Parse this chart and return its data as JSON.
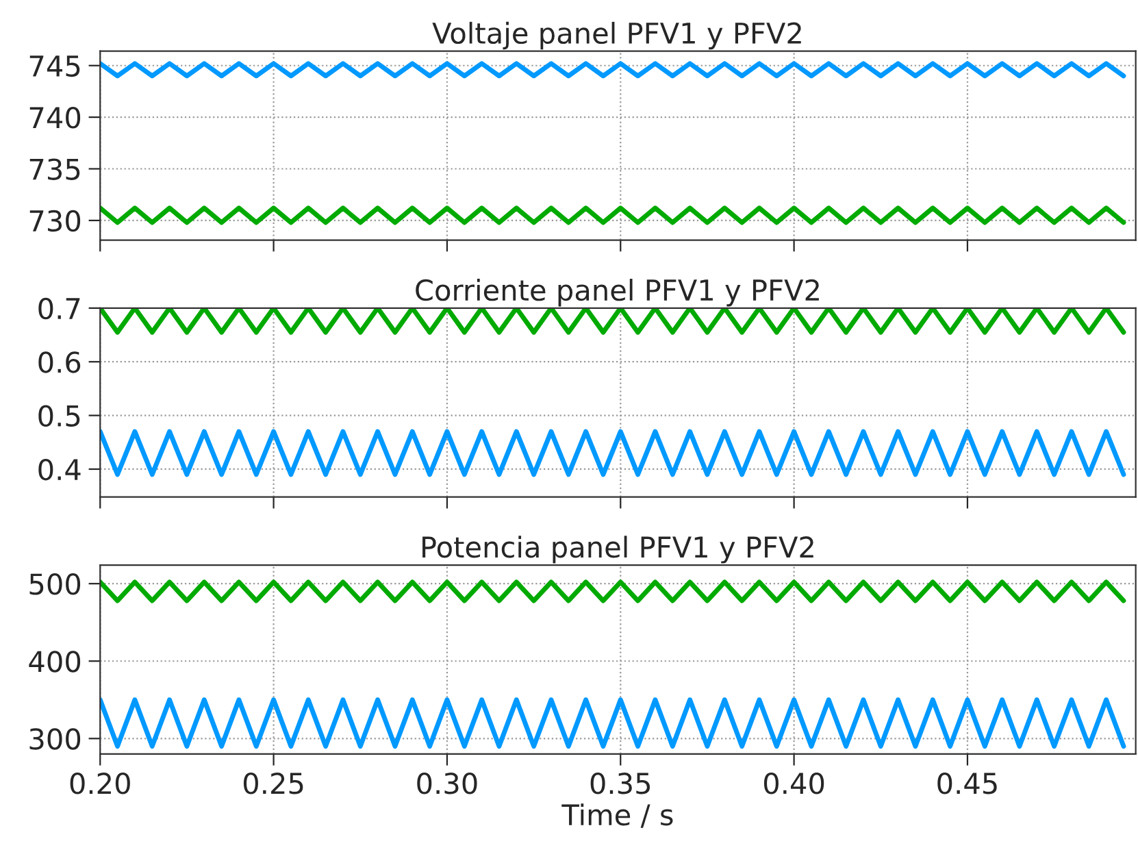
{
  "chart_data": [
    {
      "type": "line",
      "title": "Voltaje panel PFV1 y PFV2",
      "x": [
        0.2,
        0.205,
        0.21,
        0.215,
        0.22,
        0.225,
        0.23,
        0.235,
        0.24,
        0.245,
        0.25,
        0.255,
        0.26,
        0.265,
        0.27,
        0.275,
        0.28,
        0.285,
        0.29,
        0.295,
        0.3,
        0.305,
        0.31,
        0.315,
        0.32,
        0.325,
        0.33,
        0.335,
        0.34,
        0.345,
        0.35,
        0.355,
        0.36,
        0.365,
        0.37,
        0.375,
        0.38,
        0.385,
        0.39,
        0.395,
        0.4,
        0.405,
        0.41,
        0.415,
        0.42,
        0.425,
        0.43,
        0.435,
        0.44,
        0.445,
        0.45,
        0.455,
        0.46,
        0.465,
        0.47,
        0.475,
        0.48,
        0.485,
        0.49,
        0.495
      ],
      "xlim": [
        0.2,
        0.4985
      ],
      "xticks": [
        0.2,
        0.25,
        0.3,
        0.35,
        0.4,
        0.45
      ],
      "ylim": [
        728.1,
        746.4
      ],
      "yticks": [
        730,
        735,
        740,
        745
      ],
      "grid": true,
      "tick_labels": "y",
      "series": [
        {
          "color": "#0099ff",
          "values": [
            745.2,
            744.0,
            745.2,
            744.0,
            745.2,
            744.0,
            745.2,
            744.0,
            745.2,
            744.0,
            745.2,
            744.0,
            745.2,
            744.0,
            745.2,
            744.0,
            745.2,
            744.0,
            745.2,
            744.0,
            745.2,
            744.0,
            745.2,
            744.0,
            745.2,
            744.0,
            745.2,
            744.0,
            745.2,
            744.0,
            745.2,
            744.0,
            745.2,
            744.0,
            745.2,
            744.0,
            745.2,
            744.0,
            745.2,
            744.0,
            745.2,
            744.0,
            745.2,
            744.0,
            745.2,
            744.0,
            745.2,
            744.0,
            745.2,
            744.0,
            745.2,
            744.0,
            745.2,
            744.0,
            745.2,
            744.0,
            745.2,
            744.0,
            745.2,
            744.0
          ]
        },
        {
          "color": "#00aa00",
          "values": [
            731.2,
            729.8,
            731.2,
            729.8,
            731.2,
            729.8,
            731.2,
            729.8,
            731.2,
            729.8,
            731.2,
            729.8,
            731.2,
            729.8,
            731.2,
            729.8,
            731.2,
            729.8,
            731.2,
            729.8,
            731.2,
            729.8,
            731.2,
            729.8,
            731.2,
            729.8,
            731.2,
            729.8,
            731.2,
            729.8,
            731.2,
            729.8,
            731.2,
            729.8,
            731.2,
            729.8,
            731.2,
            729.8,
            731.2,
            729.8,
            731.2,
            729.8,
            731.2,
            729.8,
            731.2,
            729.8,
            731.2,
            729.8,
            731.2,
            729.8,
            731.2,
            729.8,
            731.2,
            729.8,
            731.2,
            729.8,
            731.2,
            729.8,
            731.2,
            729.8
          ]
        }
      ]
    },
    {
      "type": "line",
      "title": "Corriente panel PFV1 y PFV2",
      "x": [
        0.2,
        0.205,
        0.21,
        0.215,
        0.22,
        0.225,
        0.23,
        0.235,
        0.24,
        0.245,
        0.25,
        0.255,
        0.26,
        0.265,
        0.27,
        0.275,
        0.28,
        0.285,
        0.29,
        0.295,
        0.3,
        0.305,
        0.31,
        0.315,
        0.32,
        0.325,
        0.33,
        0.335,
        0.34,
        0.345,
        0.35,
        0.355,
        0.36,
        0.365,
        0.37,
        0.375,
        0.38,
        0.385,
        0.39,
        0.395,
        0.4,
        0.405,
        0.41,
        0.415,
        0.42,
        0.425,
        0.43,
        0.435,
        0.44,
        0.445,
        0.45,
        0.455,
        0.46,
        0.465,
        0.47,
        0.475,
        0.48,
        0.485,
        0.49,
        0.495
      ],
      "xlim": [
        0.2,
        0.4985
      ],
      "xticks": [
        0.2,
        0.25,
        0.3,
        0.35,
        0.4,
        0.45
      ],
      "ylim": [
        0.348,
        0.7
      ],
      "yticks": [
        0.4,
        0.5,
        0.6,
        0.7
      ],
      "grid": true,
      "tick_labels": "y",
      "series": [
        {
          "color": "#00aa00",
          "values": [
            0.7,
            0.655,
            0.7,
            0.655,
            0.7,
            0.655,
            0.7,
            0.655,
            0.7,
            0.655,
            0.7,
            0.655,
            0.7,
            0.655,
            0.7,
            0.655,
            0.7,
            0.655,
            0.7,
            0.655,
            0.7,
            0.655,
            0.7,
            0.655,
            0.7,
            0.655,
            0.7,
            0.655,
            0.7,
            0.655,
            0.7,
            0.655,
            0.7,
            0.655,
            0.7,
            0.655,
            0.7,
            0.655,
            0.7,
            0.655,
            0.7,
            0.655,
            0.7,
            0.655,
            0.7,
            0.655,
            0.7,
            0.655,
            0.7,
            0.655,
            0.7,
            0.655,
            0.7,
            0.655,
            0.7,
            0.655,
            0.7,
            0.655,
            0.7,
            0.655
          ]
        },
        {
          "color": "#0099ff",
          "values": [
            0.47,
            0.39,
            0.47,
            0.39,
            0.47,
            0.39,
            0.47,
            0.39,
            0.47,
            0.39,
            0.47,
            0.39,
            0.47,
            0.39,
            0.47,
            0.39,
            0.47,
            0.39,
            0.47,
            0.39,
            0.47,
            0.39,
            0.47,
            0.39,
            0.47,
            0.39,
            0.47,
            0.39,
            0.47,
            0.39,
            0.47,
            0.39,
            0.47,
            0.39,
            0.47,
            0.39,
            0.47,
            0.39,
            0.47,
            0.39,
            0.47,
            0.39,
            0.47,
            0.39,
            0.47,
            0.39,
            0.47,
            0.39,
            0.47,
            0.39,
            0.47,
            0.39,
            0.47,
            0.39,
            0.47,
            0.39,
            0.47,
            0.39,
            0.47,
            0.39
          ]
        }
      ]
    },
    {
      "type": "line",
      "title": "Potencia panel PFV1 y PFV2",
      "xlabel": "Time / s",
      "x": [
        0.2,
        0.205,
        0.21,
        0.215,
        0.22,
        0.225,
        0.23,
        0.235,
        0.24,
        0.245,
        0.25,
        0.255,
        0.26,
        0.265,
        0.27,
        0.275,
        0.28,
        0.285,
        0.29,
        0.295,
        0.3,
        0.305,
        0.31,
        0.315,
        0.32,
        0.325,
        0.33,
        0.335,
        0.34,
        0.345,
        0.35,
        0.355,
        0.36,
        0.365,
        0.37,
        0.375,
        0.38,
        0.385,
        0.39,
        0.395,
        0.4,
        0.405,
        0.41,
        0.415,
        0.42,
        0.425,
        0.43,
        0.435,
        0.44,
        0.445,
        0.45,
        0.455,
        0.46,
        0.465,
        0.47,
        0.475,
        0.48,
        0.485,
        0.49,
        0.495
      ],
      "xlim": [
        0.2,
        0.4985
      ],
      "xticks": [
        {
          "value": 0.2,
          "label": "0.20"
        },
        {
          "value": 0.25,
          "label": "0.25"
        },
        {
          "value": 0.3,
          "label": "0.30"
        },
        {
          "value": 0.35,
          "label": "0.35"
        },
        {
          "value": 0.4,
          "label": "0.40"
        },
        {
          "value": 0.45,
          "label": "0.45"
        }
      ],
      "ylim": [
        280,
        524
      ],
      "yticks": [
        300,
        400,
        500
      ],
      "grid": true,
      "series": [
        {
          "color": "#00aa00",
          "values": [
            502,
            478,
            502,
            478,
            502,
            478,
            502,
            478,
            502,
            478,
            502,
            478,
            502,
            478,
            502,
            478,
            502,
            478,
            502,
            478,
            502,
            478,
            502,
            478,
            502,
            478,
            502,
            478,
            502,
            478,
            502,
            478,
            502,
            478,
            502,
            478,
            502,
            478,
            502,
            478,
            502,
            478,
            502,
            478,
            502,
            478,
            502,
            478,
            502,
            478,
            502,
            478,
            502,
            478,
            502,
            478,
            502,
            478,
            502,
            478
          ]
        },
        {
          "color": "#0099ff",
          "values": [
            350,
            290,
            350,
            290,
            350,
            290,
            350,
            290,
            350,
            290,
            350,
            290,
            350,
            290,
            350,
            290,
            350,
            290,
            350,
            290,
            350,
            290,
            350,
            290,
            350,
            290,
            350,
            290,
            350,
            290,
            350,
            290,
            350,
            290,
            350,
            290,
            350,
            290,
            350,
            290,
            350,
            290,
            350,
            290,
            350,
            290,
            350,
            290,
            350,
            290,
            350,
            290,
            350,
            290,
            350,
            290,
            350,
            290,
            350,
            290
          ]
        }
      ]
    }
  ]
}
